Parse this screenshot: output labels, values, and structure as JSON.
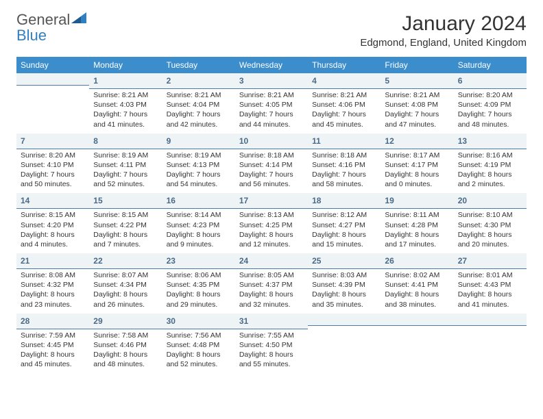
{
  "logo": {
    "word1": "General",
    "word2": "Blue"
  },
  "title": "January 2024",
  "location": "Edgmond, England, United Kingdom",
  "colors": {
    "header_bg": "#3c8dcc",
    "header_text": "#ffffff",
    "daynum_bg": "#eef3f6",
    "daynum_border": "#4b7aa8",
    "daynum_color": "#4a6a88",
    "logo_blue": "#2f7fc1",
    "body_text": "#333333"
  },
  "weekdays": [
    "Sunday",
    "Monday",
    "Tuesday",
    "Wednesday",
    "Thursday",
    "Friday",
    "Saturday"
  ],
  "weeks": [
    [
      null,
      {
        "n": "1",
        "sr": "Sunrise: 8:21 AM",
        "ss": "Sunset: 4:03 PM",
        "d1": "Daylight: 7 hours",
        "d2": "and 41 minutes."
      },
      {
        "n": "2",
        "sr": "Sunrise: 8:21 AM",
        "ss": "Sunset: 4:04 PM",
        "d1": "Daylight: 7 hours",
        "d2": "and 42 minutes."
      },
      {
        "n": "3",
        "sr": "Sunrise: 8:21 AM",
        "ss": "Sunset: 4:05 PM",
        "d1": "Daylight: 7 hours",
        "d2": "and 44 minutes."
      },
      {
        "n": "4",
        "sr": "Sunrise: 8:21 AM",
        "ss": "Sunset: 4:06 PM",
        "d1": "Daylight: 7 hours",
        "d2": "and 45 minutes."
      },
      {
        "n": "5",
        "sr": "Sunrise: 8:21 AM",
        "ss": "Sunset: 4:08 PM",
        "d1": "Daylight: 7 hours",
        "d2": "and 47 minutes."
      },
      {
        "n": "6",
        "sr": "Sunrise: 8:20 AM",
        "ss": "Sunset: 4:09 PM",
        "d1": "Daylight: 7 hours",
        "d2": "and 48 minutes."
      }
    ],
    [
      {
        "n": "7",
        "sr": "Sunrise: 8:20 AM",
        "ss": "Sunset: 4:10 PM",
        "d1": "Daylight: 7 hours",
        "d2": "and 50 minutes."
      },
      {
        "n": "8",
        "sr": "Sunrise: 8:19 AM",
        "ss": "Sunset: 4:11 PM",
        "d1": "Daylight: 7 hours",
        "d2": "and 52 minutes."
      },
      {
        "n": "9",
        "sr": "Sunrise: 8:19 AM",
        "ss": "Sunset: 4:13 PM",
        "d1": "Daylight: 7 hours",
        "d2": "and 54 minutes."
      },
      {
        "n": "10",
        "sr": "Sunrise: 8:18 AM",
        "ss": "Sunset: 4:14 PM",
        "d1": "Daylight: 7 hours",
        "d2": "and 56 minutes."
      },
      {
        "n": "11",
        "sr": "Sunrise: 8:18 AM",
        "ss": "Sunset: 4:16 PM",
        "d1": "Daylight: 7 hours",
        "d2": "and 58 minutes."
      },
      {
        "n": "12",
        "sr": "Sunrise: 8:17 AM",
        "ss": "Sunset: 4:17 PM",
        "d1": "Daylight: 8 hours",
        "d2": "and 0 minutes."
      },
      {
        "n": "13",
        "sr": "Sunrise: 8:16 AM",
        "ss": "Sunset: 4:19 PM",
        "d1": "Daylight: 8 hours",
        "d2": "and 2 minutes."
      }
    ],
    [
      {
        "n": "14",
        "sr": "Sunrise: 8:15 AM",
        "ss": "Sunset: 4:20 PM",
        "d1": "Daylight: 8 hours",
        "d2": "and 4 minutes."
      },
      {
        "n": "15",
        "sr": "Sunrise: 8:15 AM",
        "ss": "Sunset: 4:22 PM",
        "d1": "Daylight: 8 hours",
        "d2": "and 7 minutes."
      },
      {
        "n": "16",
        "sr": "Sunrise: 8:14 AM",
        "ss": "Sunset: 4:23 PM",
        "d1": "Daylight: 8 hours",
        "d2": "and 9 minutes."
      },
      {
        "n": "17",
        "sr": "Sunrise: 8:13 AM",
        "ss": "Sunset: 4:25 PM",
        "d1": "Daylight: 8 hours",
        "d2": "and 12 minutes."
      },
      {
        "n": "18",
        "sr": "Sunrise: 8:12 AM",
        "ss": "Sunset: 4:27 PM",
        "d1": "Daylight: 8 hours",
        "d2": "and 15 minutes."
      },
      {
        "n": "19",
        "sr": "Sunrise: 8:11 AM",
        "ss": "Sunset: 4:28 PM",
        "d1": "Daylight: 8 hours",
        "d2": "and 17 minutes."
      },
      {
        "n": "20",
        "sr": "Sunrise: 8:10 AM",
        "ss": "Sunset: 4:30 PM",
        "d1": "Daylight: 8 hours",
        "d2": "and 20 minutes."
      }
    ],
    [
      {
        "n": "21",
        "sr": "Sunrise: 8:08 AM",
        "ss": "Sunset: 4:32 PM",
        "d1": "Daylight: 8 hours",
        "d2": "and 23 minutes."
      },
      {
        "n": "22",
        "sr": "Sunrise: 8:07 AM",
        "ss": "Sunset: 4:34 PM",
        "d1": "Daylight: 8 hours",
        "d2": "and 26 minutes."
      },
      {
        "n": "23",
        "sr": "Sunrise: 8:06 AM",
        "ss": "Sunset: 4:35 PM",
        "d1": "Daylight: 8 hours",
        "d2": "and 29 minutes."
      },
      {
        "n": "24",
        "sr": "Sunrise: 8:05 AM",
        "ss": "Sunset: 4:37 PM",
        "d1": "Daylight: 8 hours",
        "d2": "and 32 minutes."
      },
      {
        "n": "25",
        "sr": "Sunrise: 8:03 AM",
        "ss": "Sunset: 4:39 PM",
        "d1": "Daylight: 8 hours",
        "d2": "and 35 minutes."
      },
      {
        "n": "26",
        "sr": "Sunrise: 8:02 AM",
        "ss": "Sunset: 4:41 PM",
        "d1": "Daylight: 8 hours",
        "d2": "and 38 minutes."
      },
      {
        "n": "27",
        "sr": "Sunrise: 8:01 AM",
        "ss": "Sunset: 4:43 PM",
        "d1": "Daylight: 8 hours",
        "d2": "and 41 minutes."
      }
    ],
    [
      {
        "n": "28",
        "sr": "Sunrise: 7:59 AM",
        "ss": "Sunset: 4:45 PM",
        "d1": "Daylight: 8 hours",
        "d2": "and 45 minutes."
      },
      {
        "n": "29",
        "sr": "Sunrise: 7:58 AM",
        "ss": "Sunset: 4:46 PM",
        "d1": "Daylight: 8 hours",
        "d2": "and 48 minutes."
      },
      {
        "n": "30",
        "sr": "Sunrise: 7:56 AM",
        "ss": "Sunset: 4:48 PM",
        "d1": "Daylight: 8 hours",
        "d2": "and 52 minutes."
      },
      {
        "n": "31",
        "sr": "Sunrise: 7:55 AM",
        "ss": "Sunset: 4:50 PM",
        "d1": "Daylight: 8 hours",
        "d2": "and 55 minutes."
      },
      null,
      null,
      null
    ]
  ]
}
